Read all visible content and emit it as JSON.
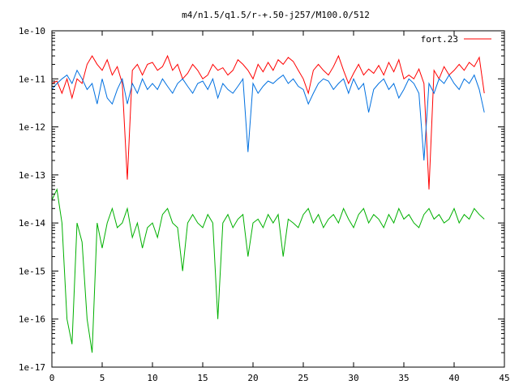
{
  "chart_data": {
    "type": "line",
    "title": "m4/n1.5/q1.5/r-+.50-j257/M100.0/512",
    "xlabel": "",
    "ylabel": "",
    "xlim": [
      0,
      45
    ],
    "ylim": [
      1e-17,
      1e-10
    ],
    "yscale": "log",
    "grid": false,
    "legend_position": "top-right",
    "x_ticks": [
      0,
      5,
      10,
      15,
      20,
      25,
      30,
      35,
      40,
      45
    ],
    "x_tick_labels": [
      "0",
      "5",
      "10",
      "15",
      "20",
      "25",
      "30",
      "35",
      "40",
      "45"
    ],
    "y_ticks": [
      1e-17,
      1e-16,
      1e-15,
      1e-14,
      1e-13,
      1e-12,
      1e-11,
      1e-10
    ],
    "y_tick_labels": [
      "1e-17",
      "1e-16",
      "1e-15",
      "1e-14",
      "1e-13",
      "1e-12",
      "1e-11",
      "1e-10"
    ],
    "series": [
      {
        "name": "fort.23",
        "color": "#ff0000",
        "x": [
          0,
          0.5,
          1,
          1.5,
          2,
          2.5,
          3,
          3.5,
          4,
          4.5,
          5,
          5.5,
          6,
          6.5,
          7,
          7.5,
          8,
          8.5,
          9,
          9.5,
          10,
          10.5,
          11,
          11.5,
          12,
          12.5,
          13,
          13.5,
          14,
          14.5,
          15,
          15.5,
          16,
          16.5,
          17,
          17.5,
          18,
          18.5,
          19,
          19.5,
          20,
          20.5,
          21,
          21.5,
          22,
          22.5,
          23,
          23.5,
          24,
          24.5,
          25,
          25.5,
          26,
          26.5,
          27,
          27.5,
          28,
          28.5,
          29,
          29.5,
          30,
          30.5,
          31,
          31.5,
          32,
          32.5,
          33,
          33.5,
          34,
          34.5,
          35,
          35.5,
          36,
          36.5,
          37,
          37.5,
          38,
          38.5,
          39,
          39.5,
          40,
          40.5,
          41,
          41.5,
          42,
          42.5,
          43
        ],
        "y": [
          8e-12,
          9e-12,
          5e-12,
          1e-11,
          4e-12,
          1e-11,
          8e-12,
          2e-11,
          3e-11,
          2e-11,
          1.5e-11,
          2.5e-11,
          1.2e-11,
          1.8e-11,
          8e-12,
          8e-14,
          1.5e-11,
          2e-11,
          1.2e-11,
          2e-11,
          2.2e-11,
          1.5e-11,
          1.8e-11,
          3e-11,
          1.5e-11,
          2e-11,
          1e-11,
          1.3e-11,
          2e-11,
          1.5e-11,
          1e-11,
          1.2e-11,
          2e-11,
          1.5e-11,
          1.7e-11,
          1.2e-11,
          1.5e-11,
          2.5e-11,
          2e-11,
          1.5e-11,
          1e-11,
          2e-11,
          1.4e-11,
          2.2e-11,
          1.5e-11,
          2.5e-11,
          2e-11,
          2.8e-11,
          2.3e-11,
          1.5e-11,
          1e-11,
          5e-12,
          1.5e-11,
          2e-11,
          1.5e-11,
          1.2e-11,
          1.8e-11,
          3e-11,
          1.5e-11,
          8e-12,
          1.3e-11,
          2e-11,
          1.2e-11,
          1.6e-11,
          1.3e-11,
          1.9e-11,
          1.2e-11,
          2.2e-11,
          1.4e-11,
          2.5e-11,
          1e-11,
          1.2e-11,
          1e-11,
          1.6e-11,
          8e-12,
          5e-14,
          1.5e-11,
          1e-11,
          1.8e-11,
          1.2e-11,
          1.5e-11,
          2e-11,
          1.5e-11,
          2.2e-11,
          1.8e-11,
          2.8e-11,
          5e-12
        ]
      },
      {
        "name": "",
        "color": "#0070e0",
        "x": [
          0,
          0.5,
          1,
          1.5,
          2,
          2.5,
          3,
          3.5,
          4,
          4.5,
          5,
          5.5,
          6,
          6.5,
          7,
          7.5,
          8,
          8.5,
          9,
          9.5,
          10,
          10.5,
          11,
          11.5,
          12,
          12.5,
          13,
          13.5,
          14,
          14.5,
          15,
          15.5,
          16,
          16.5,
          17,
          17.5,
          18,
          18.5,
          19,
          19.5,
          20,
          20.5,
          21,
          21.5,
          22,
          22.5,
          23,
          23.5,
          24,
          24.5,
          25,
          25.5,
          26,
          26.5,
          27,
          27.5,
          28,
          28.5,
          29,
          29.5,
          30,
          30.5,
          31,
          31.5,
          32,
          32.5,
          33,
          33.5,
          34,
          34.5,
          35,
          35.5,
          36,
          36.5,
          37,
          37.5,
          38,
          38.5,
          39,
          39.5,
          40,
          40.5,
          41,
          41.5,
          42,
          42.5,
          43
        ],
        "y": [
          6e-12,
          8e-12,
          1e-11,
          1.2e-11,
          8e-12,
          1.5e-11,
          1e-11,
          6e-12,
          8e-12,
          3e-12,
          1e-11,
          4e-12,
          3e-12,
          6e-12,
          1e-11,
          3e-12,
          8e-12,
          5e-12,
          1e-11,
          6e-12,
          8e-12,
          6e-12,
          1e-11,
          7e-12,
          5e-12,
          8e-12,
          1e-11,
          7e-12,
          5e-12,
          8e-12,
          9e-12,
          6e-12,
          1e-11,
          4e-12,
          8e-12,
          6e-12,
          5e-12,
          7e-12,
          1e-11,
          3e-13,
          8e-12,
          5e-12,
          7e-12,
          9e-12,
          8e-12,
          1e-11,
          1.2e-11,
          8e-12,
          1e-11,
          7e-12,
          6e-12,
          3e-12,
          5e-12,
          8e-12,
          1e-11,
          9e-12,
          6e-12,
          8e-12,
          1e-11,
          5e-12,
          1e-11,
          6e-12,
          8e-12,
          2e-12,
          6e-12,
          8e-12,
          1e-11,
          6e-12,
          8e-12,
          4e-12,
          6e-12,
          1e-11,
          8e-12,
          5e-12,
          2e-13,
          8e-12,
          5e-12,
          1e-11,
          8e-12,
          1.2e-11,
          8e-12,
          6e-12,
          1e-11,
          8e-12,
          1.2e-11,
          6e-12,
          2e-12
        ]
      },
      {
        "name": "",
        "color": "#00b000",
        "x": [
          0,
          0.5,
          1,
          1.5,
          2,
          2.5,
          3,
          3.5,
          4,
          4.5,
          5,
          5.5,
          6,
          6.5,
          7,
          7.5,
          8,
          8.5,
          9,
          9.5,
          10,
          10.5,
          11,
          11.5,
          12,
          12.5,
          13,
          13.5,
          14,
          14.5,
          15,
          15.5,
          16,
          16.5,
          17,
          17.5,
          18,
          18.5,
          19,
          19.5,
          20,
          20.5,
          21,
          21.5,
          22,
          22.5,
          23,
          23.5,
          24,
          24.5,
          25,
          25.5,
          26,
          26.5,
          27,
          27.5,
          28,
          28.5,
          29,
          29.5,
          30,
          30.5,
          31,
          31.5,
          32,
          32.5,
          33,
          33.5,
          34,
          34.5,
          35,
          35.5,
          36,
          36.5,
          37,
          37.5,
          38,
          38.5,
          39,
          39.5,
          40,
          40.5,
          41,
          41.5,
          42,
          42.5,
          43
        ],
        "y": [
          3e-14,
          5e-14,
          1e-14,
          1e-16,
          3e-17,
          1e-14,
          4e-15,
          1e-16,
          2e-17,
          1e-14,
          3e-15,
          1e-14,
          2e-14,
          8e-15,
          1e-14,
          2e-14,
          5e-15,
          1e-14,
          3e-15,
          8e-15,
          1e-14,
          5e-15,
          1.5e-14,
          2e-14,
          1e-14,
          8e-15,
          1e-15,
          1e-14,
          1.5e-14,
          1e-14,
          8e-15,
          1.5e-14,
          1e-14,
          1e-16,
          1e-14,
          1.5e-14,
          8e-15,
          1.2e-14,
          1.5e-14,
          2e-15,
          1e-14,
          1.2e-14,
          8e-15,
          1.5e-14,
          1e-14,
          1.5e-14,
          2e-15,
          1.2e-14,
          1e-14,
          8e-15,
          1.5e-14,
          2e-14,
          1e-14,
          1.5e-14,
          8e-15,
          1.2e-14,
          1.5e-14,
          1e-14,
          2e-14,
          1.2e-14,
          8e-15,
          1.5e-14,
          2e-14,
          1e-14,
          1.5e-14,
          1.2e-14,
          8e-15,
          1.5e-14,
          1e-14,
          2e-14,
          1.2e-14,
          1.5e-14,
          1e-14,
          8e-15,
          1.5e-14,
          2e-14,
          1.2e-14,
          1.5e-14,
          1e-14,
          1.2e-14,
          2e-14,
          1e-14,
          1.5e-14,
          1.2e-14,
          2e-14,
          1.5e-14,
          1.2e-14
        ]
      }
    ]
  }
}
